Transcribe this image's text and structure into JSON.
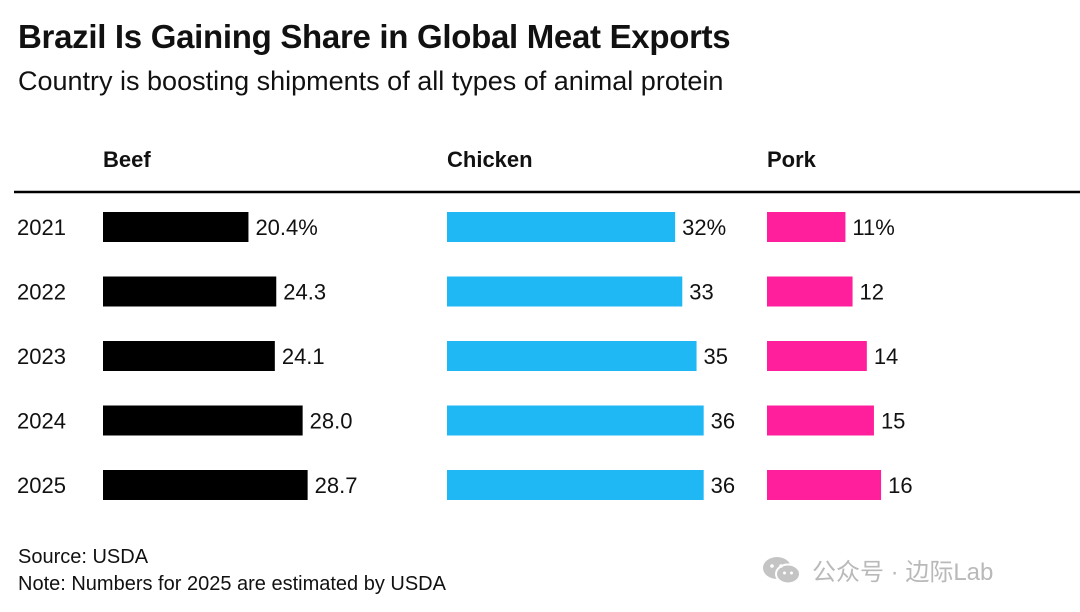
{
  "title": "Brazil Is Gaining Share in Global Meat Exports",
  "subtitle": "Country is boosting shipments of all types of animal protein",
  "source": "Source: USDA",
  "note": "Note: Numbers for 2025 are estimated by USDA",
  "watermark": {
    "text": "公众号 · 边际Lab",
    "icon": "wechat-icon"
  },
  "colors": {
    "beef": "#000000",
    "chicken": "#1fb8f5",
    "pork": "#ff1f9d",
    "text": "#111111",
    "rule": "#000000"
  },
  "chart_data": {
    "type": "bar",
    "orientation": "horizontal",
    "layout": "small-multiples",
    "categories": [
      "2021",
      "2022",
      "2023",
      "2024",
      "2025"
    ],
    "series": [
      {
        "name": "Beef",
        "values": [
          20.4,
          24.3,
          24.1,
          28.0,
          28.7
        ],
        "labels": [
          "20.4%",
          "24.3",
          "24.1",
          "28.0",
          "28.7"
        ],
        "color": "#000000"
      },
      {
        "name": "Chicken",
        "values": [
          32,
          33,
          35,
          36,
          36
        ],
        "labels": [
          "32%",
          "33",
          "35",
          "36",
          "36"
        ],
        "color": "#1fb8f5"
      },
      {
        "name": "Pork",
        "values": [
          11,
          12,
          14,
          15,
          16
        ],
        "labels": [
          "11%",
          "12",
          "14",
          "15",
          "16"
        ],
        "color": "#ff1f9d"
      }
    ],
    "unit": "%",
    "grid": false,
    "legend": "none"
  }
}
